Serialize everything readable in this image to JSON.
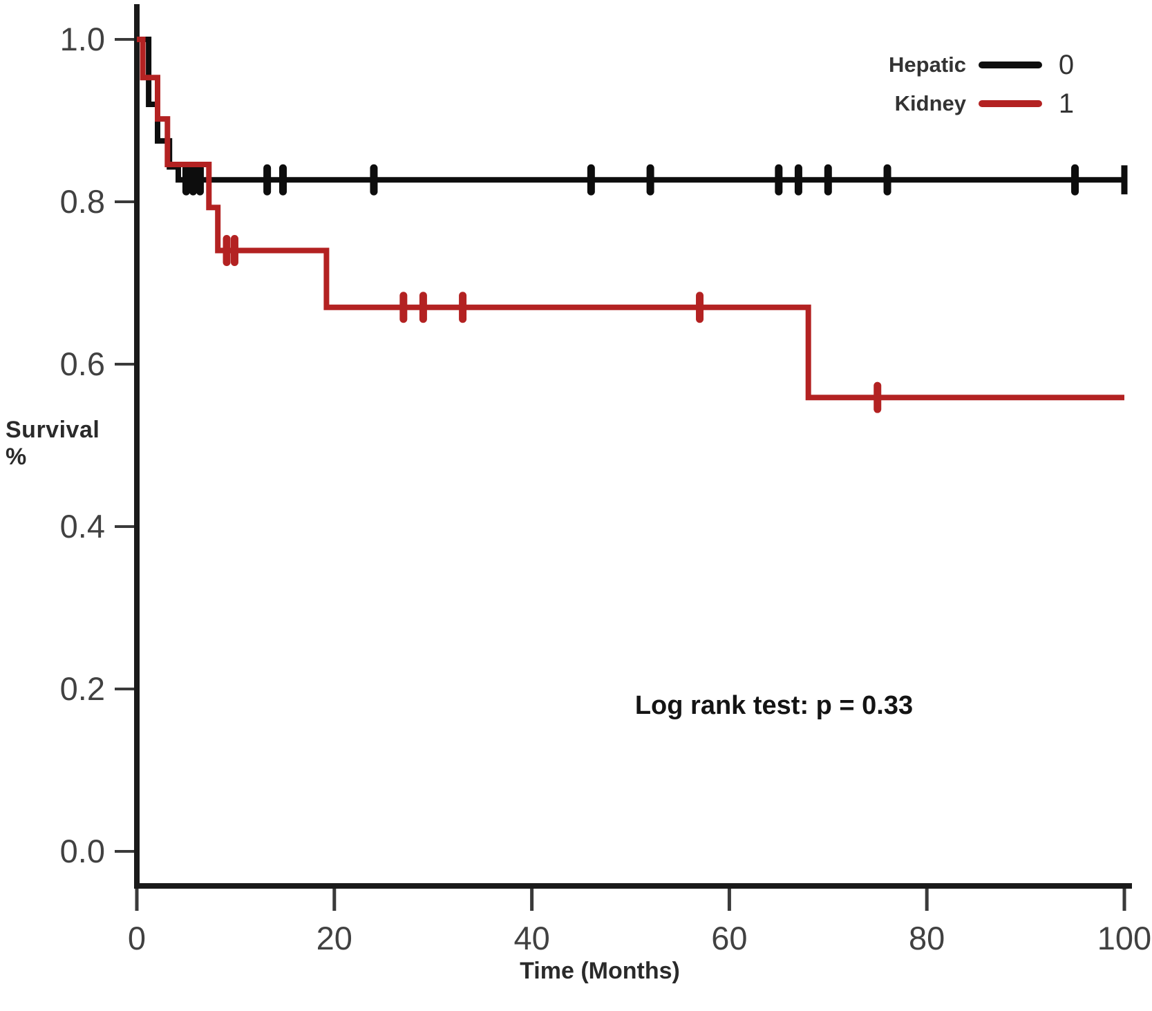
{
  "figure": {
    "ylabel": "Survival %",
    "xlabel": "Time (Months)"
  },
  "chart_data": {
    "type": "line",
    "subtype": "kaplan_meier_step",
    "title": "",
    "xlabel": "Time (Months)",
    "ylabel": "Survival %",
    "xlim": [
      0,
      100
    ],
    "ylim": [
      0.0,
      1.0
    ],
    "grid": false,
    "x_ticks": [
      0,
      20,
      40,
      60,
      80,
      100
    ],
    "x_tick_labels": [
      "0",
      "20",
      "40",
      "60",
      "80",
      "100"
    ],
    "y_ticks": [
      1.0,
      0.8,
      0.6,
      0.4,
      0.2,
      0.0
    ],
    "y_tick_labels": [
      "1.0",
      "0.8",
      "0.6",
      "0.4",
      "0.2",
      "0.0"
    ],
    "annotation": "Log rank test: p = 0.33",
    "legend": {
      "position": "top-right",
      "entries": [
        {
          "label": "Hepatic",
          "value": "0",
          "color": "#0d0d0d"
        },
        {
          "label": "Kidney",
          "value": "1",
          "color": "#b32222"
        }
      ]
    },
    "series": [
      {
        "name": "Hepatic",
        "group_code": "0",
        "color": "#0d0d0d",
        "step_path": [
          [
            0,
            1.0
          ],
          [
            1.2,
            1.0
          ],
          [
            1.2,
            0.92
          ],
          [
            2.1,
            0.92
          ],
          [
            2.1,
            0.875
          ],
          [
            3.3,
            0.875
          ],
          [
            3.3,
            0.843
          ],
          [
            4.2,
            0.843
          ],
          [
            4.2,
            0.827
          ],
          [
            100,
            0.827
          ]
        ],
        "censor_marks": [
          [
            5,
            0.827
          ],
          [
            5.7,
            0.827
          ],
          [
            6.4,
            0.827
          ],
          [
            13.2,
            0.827
          ],
          [
            14.8,
            0.827
          ],
          [
            24,
            0.827
          ],
          [
            46,
            0.827
          ],
          [
            52,
            0.827
          ],
          [
            65,
            0.827
          ],
          [
            67,
            0.827
          ],
          [
            70,
            0.827
          ],
          [
            76,
            0.827
          ],
          [
            95,
            0.827
          ]
        ],
        "terminal_mark": [
          100,
          0.827
        ]
      },
      {
        "name": "Kidney",
        "group_code": "1",
        "color": "#b32222",
        "step_path": [
          [
            0,
            1.0
          ],
          [
            0.6,
            1.0
          ],
          [
            0.6,
            0.953
          ],
          [
            2.1,
            0.953
          ],
          [
            2.1,
            0.902
          ],
          [
            3.1,
            0.902
          ],
          [
            3.1,
            0.846
          ],
          [
            7.3,
            0.846
          ],
          [
            7.3,
            0.793
          ],
          [
            8.2,
            0.793
          ],
          [
            8.2,
            0.74
          ],
          [
            19.2,
            0.74
          ],
          [
            19.2,
            0.67
          ],
          [
            68,
            0.67
          ],
          [
            68,
            0.559
          ],
          [
            100,
            0.559
          ]
        ],
        "censor_marks": [
          [
            9.1,
            0.74
          ],
          [
            9.9,
            0.74
          ],
          [
            27,
            0.67
          ],
          [
            29,
            0.67
          ],
          [
            33,
            0.67
          ],
          [
            57,
            0.67
          ],
          [
            75,
            0.559
          ]
        ],
        "terminal_mark": null
      }
    ],
    "statistics": {
      "log_rank_p": "0.33"
    }
  },
  "colors": {
    "background": "#ffffff",
    "axis": "#1a1a1a",
    "tick": "#3a3a3a",
    "tick_label": "#414141",
    "hepatic": "#0d0d0d",
    "kidney": "#b32222"
  }
}
